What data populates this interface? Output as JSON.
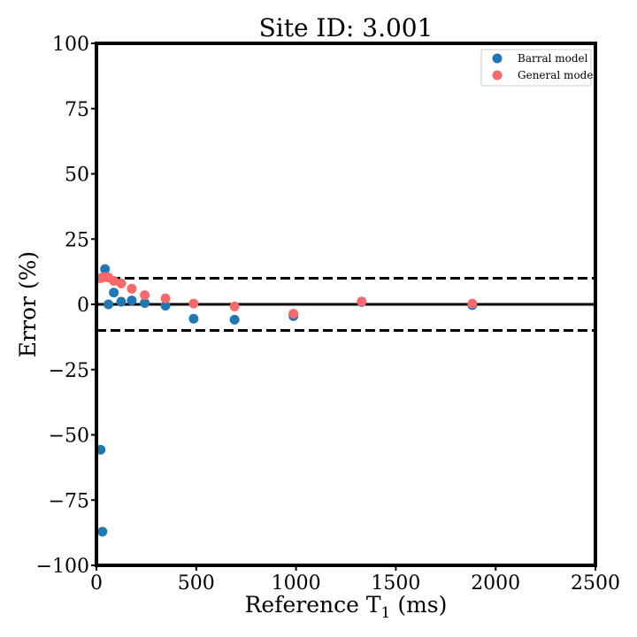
{
  "chart_data": {
    "type": "scatter",
    "title": "Site ID: 3.001",
    "xlabel": "Reference T",
    "xlabel_subscript": "1",
    "xlabel_suffix": " (ms)",
    "ylabel": "Error (%)",
    "xlim": [
      0,
      2500
    ],
    "ylim": [
      -100,
      100
    ],
    "xticks": [
      0,
      500,
      1000,
      1500,
      2000,
      2500
    ],
    "yticks": [
      100,
      75,
      50,
      25,
      0,
      -25,
      -50,
      -75,
      -100
    ],
    "ytick_labels": [
      "100",
      "75",
      "50",
      "25",
      "0",
      "−25",
      "−50",
      "−75",
      "−100"
    ],
    "grid": false,
    "legend_position": "top-right",
    "reference_lines": [
      {
        "y": 10,
        "style": "dashed"
      },
      {
        "y": 0,
        "style": "solid"
      },
      {
        "y": -10,
        "style": "dashed"
      }
    ],
    "series": [
      {
        "name": "Barral model",
        "color": "#1f77b4",
        "points": [
          {
            "x": 21,
            "y": -55.7
          },
          {
            "x": 30,
            "y": -87.1
          },
          {
            "x": 43,
            "y": 13.5
          },
          {
            "x": 60,
            "y": 0.0
          },
          {
            "x": 87,
            "y": 4.5
          },
          {
            "x": 124,
            "y": 1.0
          },
          {
            "x": 177,
            "y": 1.5
          },
          {
            "x": 242,
            "y": 0.5
          },
          {
            "x": 346,
            "y": -0.5
          },
          {
            "x": 487,
            "y": -5.5
          },
          {
            "x": 692,
            "y": -5.9
          },
          {
            "x": 987,
            "y": -4.5
          },
          {
            "x": 1329,
            "y": 0.9
          },
          {
            "x": 1883,
            "y": -0.3
          }
        ]
      },
      {
        "name": "General model",
        "color": "#f8696b",
        "points": [
          {
            "x": 21,
            "y": 10.0
          },
          {
            "x": 30,
            "y": 10.3
          },
          {
            "x": 43,
            "y": 10.5
          },
          {
            "x": 60,
            "y": 10.3
          },
          {
            "x": 87,
            "y": 9.0
          },
          {
            "x": 124,
            "y": 8.0
          },
          {
            "x": 177,
            "y": 6.0
          },
          {
            "x": 242,
            "y": 3.5
          },
          {
            "x": 346,
            "y": 2.3
          },
          {
            "x": 487,
            "y": 0.3
          },
          {
            "x": 692,
            "y": -0.8
          },
          {
            "x": 987,
            "y": -3.6
          },
          {
            "x": 1329,
            "y": 1.1
          },
          {
            "x": 1883,
            "y": 0.3
          }
        ]
      }
    ]
  }
}
